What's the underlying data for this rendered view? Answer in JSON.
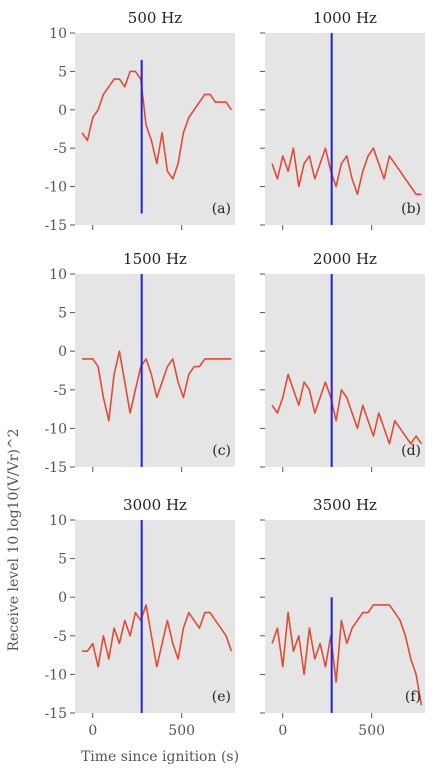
{
  "figure": {
    "ylabel": "Receive level 10 log10(V/Vr)^2",
    "xlabel": "Time since ignition (s)"
  },
  "chart_data": [
    {
      "type": "line",
      "title": "500 Hz",
      "panel_label": "(a)",
      "xlim": [
        -100,
        800
      ],
      "ylim": [
        -15,
        10
      ],
      "xticks": [
        0,
        500
      ],
      "yticks": [
        10,
        5,
        0,
        -5,
        -10,
        -15
      ],
      "show_xticklabels": false,
      "show_yticklabels": true,
      "vline_x": 275,
      "vline_ylim": [
        -13.5,
        6.5
      ],
      "line_color": "#e24a33",
      "vline_color": "#2222dd",
      "grid": false,
      "x": [
        -60,
        -30,
        0,
        30,
        60,
        90,
        120,
        150,
        180,
        210,
        240,
        270,
        300,
        330,
        360,
        390,
        420,
        450,
        480,
        510,
        540,
        570,
        600,
        630,
        660,
        690,
        720,
        750,
        780
      ],
      "y": [
        -3,
        -4,
        -1,
        0,
        2,
        3,
        4,
        4,
        3,
        5,
        5,
        4,
        -2,
        -4,
        -7,
        -3,
        -8,
        -9,
        -7,
        -3,
        -1,
        0,
        1,
        2,
        2,
        1,
        1,
        1,
        0
      ]
    },
    {
      "type": "line",
      "title": "1000 Hz",
      "panel_label": "(b)",
      "xlim": [
        -100,
        800
      ],
      "ylim": [
        -15,
        10
      ],
      "xticks": [
        0,
        500
      ],
      "yticks": [
        10,
        5,
        0,
        -5,
        -10,
        -15
      ],
      "show_xticklabels": false,
      "show_yticklabels": false,
      "vline_x": 275,
      "vline_ylim": [
        -15,
        10
      ],
      "line_color": "#e24a33",
      "vline_color": "#2222dd",
      "grid": false,
      "x": [
        -60,
        -30,
        0,
        30,
        60,
        90,
        120,
        150,
        180,
        210,
        240,
        270,
        300,
        330,
        360,
        390,
        420,
        450,
        480,
        510,
        540,
        570,
        600,
        630,
        660,
        690,
        720,
        750,
        780
      ],
      "y": [
        -7,
        -9,
        -6,
        -8,
        -5,
        -10,
        -7,
        -6,
        -9,
        -7,
        -5,
        -8,
        -10,
        -7,
        -6,
        -9,
        -11,
        -8,
        -6,
        -5,
        -7,
        -9,
        -6,
        -7,
        -8,
        -9,
        -10,
        -11,
        -11
      ]
    },
    {
      "type": "line",
      "title": "1500 Hz",
      "panel_label": "(c)",
      "xlim": [
        -100,
        800
      ],
      "ylim": [
        -15,
        10
      ],
      "xticks": [
        0,
        500
      ],
      "yticks": [
        10,
        5,
        0,
        -5,
        -10,
        -15
      ],
      "show_xticklabels": false,
      "show_yticklabels": true,
      "vline_x": 275,
      "vline_ylim": [
        -15,
        10
      ],
      "line_color": "#e24a33",
      "vline_color": "#2222dd",
      "grid": false,
      "x": [
        -60,
        -30,
        0,
        30,
        60,
        90,
        120,
        150,
        180,
        210,
        240,
        270,
        300,
        330,
        360,
        390,
        420,
        450,
        480,
        510,
        540,
        570,
        600,
        630,
        660,
        690,
        720,
        750,
        780
      ],
      "y": [
        -1,
        -1,
        -1,
        -2,
        -6,
        -9,
        -3,
        0,
        -4,
        -8,
        -5,
        -2,
        -1,
        -3,
        -6,
        -4,
        -2,
        -1,
        -4,
        -6,
        -3,
        -2,
        -2,
        -1,
        -1,
        -1,
        -1,
        -1,
        -1
      ]
    },
    {
      "type": "line",
      "title": "2000 Hz",
      "panel_label": "(d)",
      "xlim": [
        -100,
        800
      ],
      "ylim": [
        -15,
        10
      ],
      "xticks": [
        0,
        500
      ],
      "yticks": [
        10,
        5,
        0,
        -5,
        -10,
        -15
      ],
      "show_xticklabels": false,
      "show_yticklabels": false,
      "vline_x": 275,
      "vline_ylim": [
        -15,
        10
      ],
      "line_color": "#e24a33",
      "vline_color": "#2222dd",
      "grid": false,
      "x": [
        -60,
        -30,
        0,
        30,
        60,
        90,
        120,
        150,
        180,
        210,
        240,
        270,
        300,
        330,
        360,
        390,
        420,
        450,
        480,
        510,
        540,
        570,
        600,
        630,
        660,
        690,
        720,
        750,
        780
      ],
      "y": [
        -7,
        -8,
        -6,
        -3,
        -5,
        -7,
        -4,
        -5,
        -8,
        -6,
        -4,
        -6,
        -9,
        -5,
        -6,
        -8,
        -10,
        -7,
        -9,
        -11,
        -8,
        -10,
        -12,
        -9,
        -10,
        -11,
        -12,
        -11,
        -12
      ]
    },
    {
      "type": "line",
      "title": "3000 Hz",
      "panel_label": "(e)",
      "xlim": [
        -100,
        800
      ],
      "ylim": [
        -15,
        10
      ],
      "xticks": [
        0,
        500
      ],
      "yticks": [
        10,
        5,
        0,
        -5,
        -10,
        -15
      ],
      "show_xticklabels": true,
      "show_yticklabels": true,
      "vline_x": 275,
      "vline_ylim": [
        -15,
        10
      ],
      "line_color": "#e24a33",
      "vline_color": "#2222dd",
      "grid": false,
      "x": [
        -60,
        -30,
        0,
        30,
        60,
        90,
        120,
        150,
        180,
        210,
        240,
        270,
        300,
        330,
        360,
        390,
        420,
        450,
        480,
        510,
        540,
        570,
        600,
        630,
        660,
        690,
        720,
        750,
        780
      ],
      "y": [
        -7,
        -7,
        -6,
        -9,
        -5,
        -8,
        -4,
        -6,
        -3,
        -5,
        -2,
        -3,
        -1,
        -5,
        -9,
        -6,
        -3,
        -6,
        -8,
        -4,
        -2,
        -3,
        -4,
        -2,
        -2,
        -3,
        -4,
        -5,
        -7
      ]
    },
    {
      "type": "line",
      "title": "3500 Hz",
      "panel_label": "(f)",
      "xlim": [
        -100,
        800
      ],
      "ylim": [
        -15,
        10
      ],
      "xticks": [
        0,
        500
      ],
      "yticks": [
        10,
        5,
        0,
        -5,
        -10,
        -15
      ],
      "show_xticklabels": true,
      "show_yticklabels": false,
      "vline_x": 275,
      "vline_ylim": [
        -15,
        0
      ],
      "line_color": "#e24a33",
      "vline_color": "#2222dd",
      "grid": false,
      "x": [
        -60,
        -30,
        0,
        30,
        60,
        90,
        120,
        150,
        180,
        210,
        240,
        270,
        300,
        330,
        360,
        390,
        420,
        450,
        480,
        510,
        540,
        570,
        600,
        630,
        660,
        690,
        720,
        750,
        780
      ],
      "y": [
        -6,
        -4,
        -9,
        -2,
        -7,
        -5,
        -10,
        -4,
        -8,
        -6,
        -9,
        -5,
        -11,
        -3,
        -6,
        -4,
        -3,
        -2,
        -2,
        -1,
        -1,
        -1,
        -1,
        -2,
        -3,
        -5,
        -8,
        -10,
        -14
      ]
    }
  ]
}
